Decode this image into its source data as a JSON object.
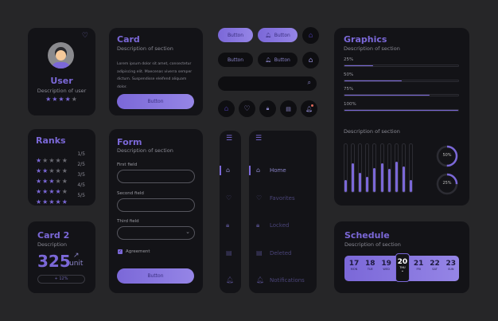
{
  "colors": {
    "background": "#262628",
    "card": "#131317",
    "accent": "#7b68d8"
  },
  "user": {
    "name": "User",
    "description": "Description of  user",
    "rating": 4,
    "max": 5,
    "icon": "heart-icon"
  },
  "card": {
    "title": "Card",
    "description": "Description of section",
    "body": "Lorem ipsum dolor sit amet, consectetur adipiscing elit. Maecenas viverra semper dictum. Suspendisse eleifend aliquam dolor.",
    "button": "Button"
  },
  "buttons": {
    "b1": "Button",
    "b2": "Button",
    "b3": "Button",
    "b4": "Button"
  },
  "icons": [
    "home-icon",
    "heart-icon",
    "lock-icon",
    "trash-icon",
    "bell-icon"
  ],
  "ranks": {
    "title": "Ranks",
    "rows": [
      {
        "stars": 1,
        "label": "1/5"
      },
      {
        "stars": 2,
        "label": "2/5"
      },
      {
        "stars": 3,
        "label": "3/5"
      },
      {
        "stars": 4,
        "label": "4/5"
      },
      {
        "stars": 5,
        "label": "5/5"
      }
    ]
  },
  "card2": {
    "title": "Card 2",
    "description": "Description",
    "value": "325",
    "unit": "unit",
    "change": "+ 12%"
  },
  "form": {
    "title": "Form",
    "description": "Description of  section",
    "first": "First field",
    "second": "Second field",
    "third": "Third field",
    "agreement": "Agreement",
    "agreement_checked": true,
    "button": "Button"
  },
  "nav": {
    "items": [
      {
        "label": "Home",
        "icon": "home-icon",
        "active": true
      },
      {
        "label": "Favorites",
        "icon": "heart-icon"
      },
      {
        "label": "Locked",
        "icon": "lock-icon"
      },
      {
        "label": "Deleted",
        "icon": "trash-icon"
      },
      {
        "label": "Notifications",
        "icon": "bell-icon"
      }
    ]
  },
  "graphics": {
    "title": "Graphics",
    "description": "Description of section",
    "progress": [
      {
        "label": "25%",
        "value": 25
      },
      {
        "label": "50%",
        "value": 50
      },
      {
        "label": "75%",
        "value": 75
      },
      {
        "label": "100%",
        "value": 100
      }
    ],
    "description2": "Description of section",
    "bars": [
      25,
      60,
      40,
      32,
      50,
      60,
      48,
      63,
      53,
      25
    ],
    "rings": [
      {
        "label": "50%",
        "value": 50
      },
      {
        "label": "25%",
        "value": 25
      }
    ]
  },
  "schedule": {
    "title": "Schedule",
    "description": "Description of section",
    "days": [
      {
        "n": "17",
        "d": "MON"
      },
      {
        "n": "18",
        "d": "TUE"
      },
      {
        "n": "19",
        "d": "WED"
      },
      {
        "n": "20",
        "d": "THU",
        "selected": true
      },
      {
        "n": "21",
        "d": "FRI"
      },
      {
        "n": "22",
        "d": "SAT"
      },
      {
        "n": "23",
        "d": "SUN"
      }
    ]
  }
}
